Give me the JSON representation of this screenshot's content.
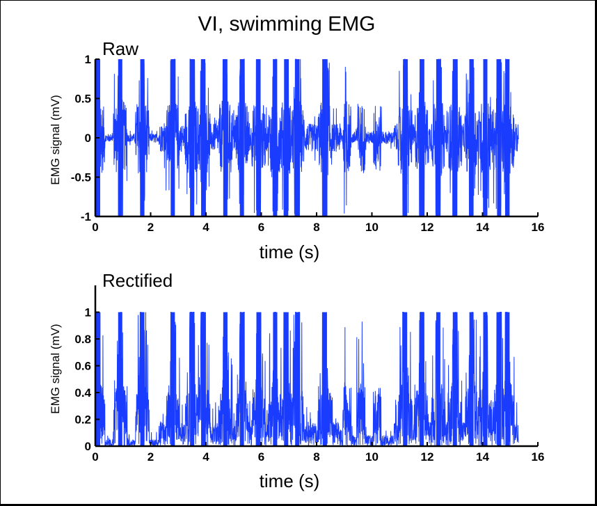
{
  "figure": {
    "title": "VI, swimming EMG"
  },
  "chart_data": [
    {
      "type": "line",
      "panel": "Raw",
      "title": "Raw",
      "xlabel": "time (s)",
      "ylabel": "EMG signal (mV)",
      "xlim": [
        0,
        16
      ],
      "ylim": [
        -1,
        1
      ],
      "xticks": [
        0,
        2,
        4,
        6,
        8,
        10,
        12,
        14,
        16
      ],
      "yticks": [
        -1,
        -0.5,
        0,
        0.5,
        1
      ],
      "xtick_labels": [
        "0",
        "2",
        "4",
        "6",
        "8",
        "10",
        "12",
        "14",
        "16"
      ],
      "ytick_labels": [
        "-1",
        "-0.5",
        "0",
        "0.5",
        "1"
      ],
      "color": "#1a3cff",
      "data_end_s": 15.3,
      "saturated_burst_times_s": [
        0.1,
        0.9,
        1.7,
        2.8,
        3.5,
        3.9,
        4.7,
        5.3,
        5.9,
        6.5,
        6.9,
        7.3,
        8.3,
        11.2,
        11.8,
        12.4,
        13.0,
        13.6,
        14.1,
        14.6,
        14.9
      ],
      "series": [
        {
          "values_desc": "dense raw EMG trace",
          "envelope": [
            {
              "t": 0.1,
              "amp": 1.0
            },
            {
              "t": 0.9,
              "amp": 1.0
            },
            {
              "t": 1.7,
              "amp": 1.0
            },
            {
              "t": 2.8,
              "amp": 1.0
            },
            {
              "t": 3.5,
              "amp": 1.0
            },
            {
              "t": 3.9,
              "amp": 1.0
            },
            {
              "t": 4.7,
              "amp": 1.0
            },
            {
              "t": 5.3,
              "amp": 1.0
            },
            {
              "t": 5.9,
              "amp": 1.0
            },
            {
              "t": 6.5,
              "amp": 1.0
            },
            {
              "t": 6.9,
              "amp": 1.0
            },
            {
              "t": 7.3,
              "amp": 1.0
            },
            {
              "t": 8.3,
              "amp": 1.0
            },
            {
              "t": 9.1,
              "amp": 0.4
            },
            {
              "t": 9.6,
              "amp": 0.3
            },
            {
              "t": 10.2,
              "amp": 0.5
            },
            {
              "t": 11.2,
              "amp": 1.0
            },
            {
              "t": 11.8,
              "amp": 1.0
            },
            {
              "t": 12.4,
              "amp": 1.0
            },
            {
              "t": 13.0,
              "amp": 1.0
            },
            {
              "t": 13.6,
              "amp": 1.0
            },
            {
              "t": 14.1,
              "amp": 1.0
            },
            {
              "t": 14.6,
              "amp": 1.0
            },
            {
              "t": 14.9,
              "amp": 1.0
            },
            {
              "t": 15.2,
              "amp": 0.9
            }
          ]
        }
      ]
    },
    {
      "type": "line",
      "panel": "Rectified",
      "title": "Rectified",
      "xlabel": "time (s)",
      "ylabel": "EMG signal (mV)",
      "xlim": [
        0,
        16
      ],
      "ylim": [
        0,
        1.2
      ],
      "xticks": [
        0,
        2,
        4,
        6,
        8,
        10,
        12,
        14,
        16
      ],
      "yticks": [
        0,
        0.2,
        0.4,
        0.6,
        0.8,
        1
      ],
      "xtick_labels": [
        "0",
        "2",
        "4",
        "6",
        "8",
        "10",
        "12",
        "14",
        "16"
      ],
      "ytick_labels": [
        "0",
        "0.2",
        "0.4",
        "0.6",
        "0.8",
        "1"
      ],
      "color": "#1a3cff",
      "data_end_s": 15.3,
      "saturated_burst_times_s": [
        0.1,
        0.9,
        1.7,
        2.8,
        3.5,
        3.9,
        4.7,
        5.3,
        5.9,
        6.5,
        6.9,
        7.3,
        8.3,
        11.2,
        11.8,
        12.4,
        13.0,
        13.6,
        14.1,
        14.6,
        14.9
      ]
    }
  ]
}
